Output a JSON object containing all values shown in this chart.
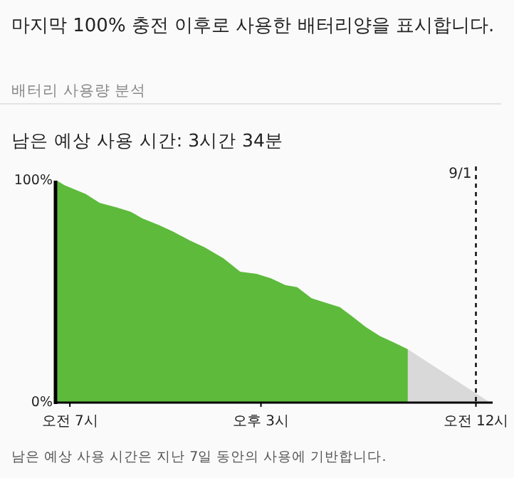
{
  "chart_data": {
    "type": "area",
    "title": "마지막 100% 충전 이후로 사용한 배터리양을 표시합니다.",
    "subtitle": "배터리 사용량 분석",
    "annotations": [
      "남은 예상 사용 시간: 3시간 34분",
      "남은 예상 사용 시간은 지난 7일 동안의 사용에 기반합니다."
    ],
    "series": [
      {
        "color": "#5dba3b",
        "x": [
          "--08-31T06:28",
          "--08-31T06:46",
          "--08-31T07:40",
          "--08-31T08:15",
          "--08-31T08:57",
          "--08-31T09:33",
          "--08-31T10:02",
          "--08-31T10:44",
          "--08-31T11:20",
          "--08-31T12:02",
          "--08-31T12:38",
          "--08-31T13:26",
          "--08-31T14:08",
          "--08-31T14:49",
          "--08-31T15:25",
          "--08-31T16:01",
          "--08-31T16:31",
          "--08-31T17:07",
          "--08-31T17:42",
          "--08-31T18:18",
          "--08-31T18:48",
          "--08-31T19:24",
          "--08-31T19:59",
          "--08-31T20:35",
          "--08-31T21:09"
        ],
        "values": [
          100,
          98,
          94,
          90,
          88,
          86,
          83,
          80,
          77,
          73,
          70,
          65,
          59,
          58,
          56,
          53,
          52,
          47,
          45,
          43,
          39,
          34,
          30,
          27,
          24
        ]
      },
      {
        "color": "#d9d9d9",
        "x": [
          "--08-31T21:09",
          "--09-01T00:36"
        ],
        "values": [
          24,
          0
        ]
      }
    ],
    "xlim": [
      "--08-31T06:24",
      "--09-01T00:42"
    ],
    "xticks": [
      {
        "value": "--08-31T07:00",
        "label": "오전 7시"
      },
      {
        "value": "--08-31T15:00",
        "label": "오후 3시"
      },
      {
        "value": "--09-01T00:00",
        "label": "오전 12시"
      }
    ],
    "ylim": [
      0,
      100
    ],
    "yticks": [
      {
        "value": 0,
        "label": "0%"
      },
      {
        "value": 100,
        "label": "100%"
      }
    ],
    "ref_lines": [
      {
        "axis": "x",
        "value": "--09-01T00:00",
        "label": "9/1",
        "line_style": "dashed",
        "color": "#000000"
      }
    ],
    "grid": false
  }
}
